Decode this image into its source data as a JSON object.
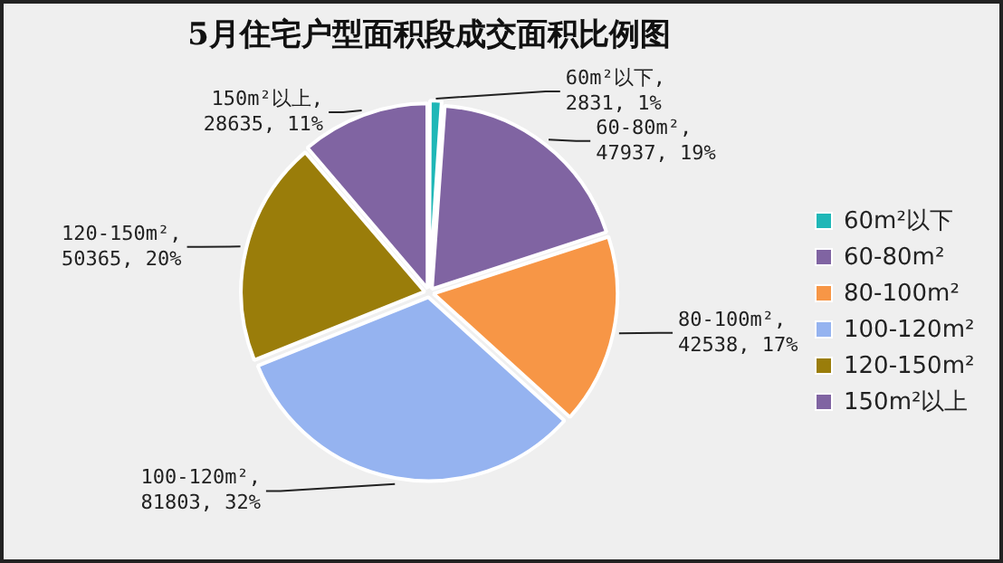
{
  "chart_data": {
    "type": "pie",
    "title": "5月住宅户型面积段成交面积比例图",
    "categories": [
      "60m²以下",
      "60-80m²",
      "80-100m²",
      "100-120m²",
      "120-150m²",
      "150m²以上"
    ],
    "values": [
      2831,
      47937,
      42538,
      81803,
      50365,
      28635
    ],
    "colors": [
      "#1fb7b7",
      "#8064a2",
      "#f79646",
      "#95b3f0",
      "#9a7d0a",
      "#8064a2"
    ],
    "value_labels": [
      "60m²以下, 2831, 1%",
      "60-80m², 47937, 19%",
      "80-100m², 42538, 17%",
      "100-120m², 81803, 32%",
      "120-150m², 50365, 20%",
      "150m²以上, 28635, 11%"
    ],
    "legend": "right"
  }
}
